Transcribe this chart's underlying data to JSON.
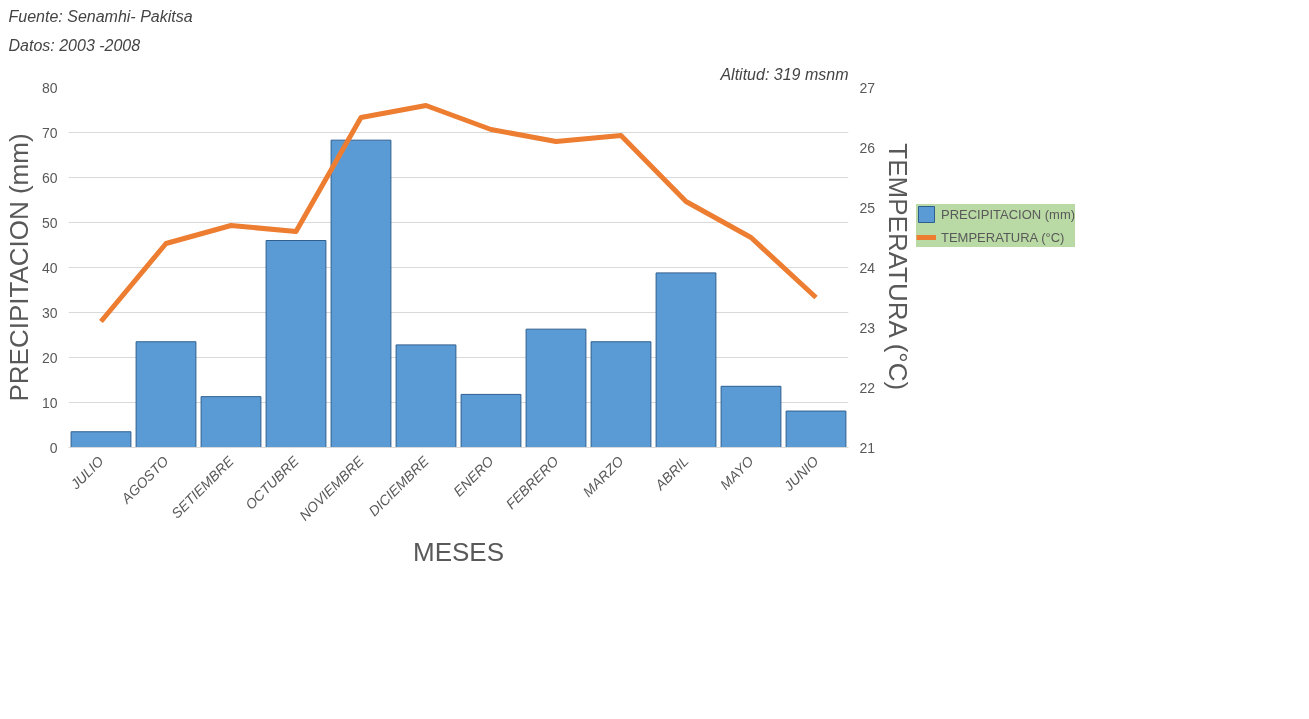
{
  "chart_data": {
    "type": "bar",
    "xlabel": "MESES",
    "ylabel": "PRECIPITACION (mm)",
    "y2label": "TEMPERATURA (°C)",
    "annotations": [
      "Fuente: Senamhi- Pakitsa",
      "Datos: 2003 -2008",
      "Altitud: 319 msnm"
    ],
    "categories": [
      "JULIO",
      "AGOSTO",
      "SETIEMBRE",
      "OCTUBRE",
      "NOVIEMBRE",
      "DICIEMBRE",
      "ENERO",
      "FEBRERO",
      "MARZO",
      "ABRIL",
      "MAYO",
      "JUNIO"
    ],
    "series": [
      {
        "name": "PRECIPITACION (mm)",
        "color": "#5b9bd5",
        "values": [
          3.5,
          23.5,
          11.3,
          46,
          68.3,
          22.8,
          11.8,
          26.3,
          23.5,
          38.8,
          13.6,
          8.1
        ]
      },
      {
        "name": "TEMPERATURA (°C)",
        "type": "line",
        "axis": "y2",
        "color": "#ed7d31",
        "values": [
          23.1,
          24.4,
          24.7,
          24.6,
          26.5,
          26.7,
          26.3,
          26.1,
          26.2,
          25.1,
          24.5,
          23.5
        ]
      }
    ],
    "ylim": [
      0,
      80
    ],
    "yticks": [
      0,
      10,
      20,
      30,
      40,
      50,
      60,
      70,
      80
    ],
    "y2lim": [
      21,
      27
    ],
    "y2ticks": [
      21,
      22,
      23,
      24,
      25,
      26,
      27
    ],
    "grid": "y",
    "legend": "right"
  }
}
